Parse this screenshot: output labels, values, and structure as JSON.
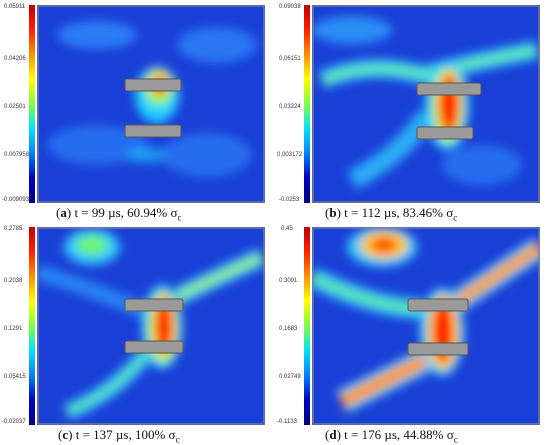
{
  "panels": [
    {
      "id": "a",
      "letter": "a",
      "caption_rest": " t = 99 µs, 60.94% σ",
      "sigma_sub": "c",
      "ticks": [
        "0.05911",
        "0.04206",
        "0.02501",
        "0.007958",
        "-0.009093"
      ]
    },
    {
      "id": "b",
      "letter": "b",
      "caption_rest": " t = 112 µs, 83.46% σ",
      "sigma_sub": "c",
      "ticks": [
        "0.09038",
        "0.06151",
        "0.03224",
        "0.003172",
        "-0.0253"
      ]
    },
    {
      "id": "c",
      "letter": "c",
      "caption_rest": " t = 137 µs, 100% σ",
      "sigma_sub": "c",
      "ticks": [
        "0.2785",
        "0.2038",
        "0.1291",
        "0.05415",
        "-0.02037"
      ]
    },
    {
      "id": "d",
      "letter": "d",
      "caption_rest": " t = 176 µs, 44.88% σ",
      "sigma_sub": "c",
      "ticks": [
        "0.45",
        "0.3091",
        "0.1683",
        "0.02749",
        "-0.1133"
      ]
    }
  ],
  "colorbar_colors": [
    "#c00000",
    "#ff2000",
    "#ff9000",
    "#ffff00",
    "#7fff40",
    "#00e0ff",
    "#0080ff",
    "#0000c0",
    "#000080"
  ]
}
